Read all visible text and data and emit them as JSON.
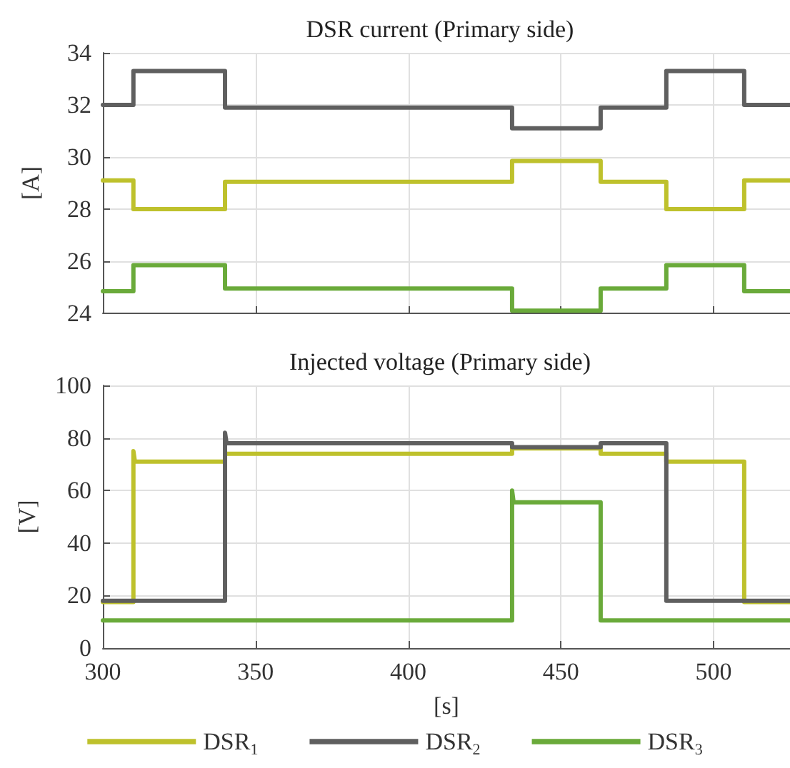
{
  "chart_data": [
    {
      "type": "line",
      "title": "DSR current (Primary side)",
      "ylabel": "[A]",
      "xlim": [
        300,
        525
      ],
      "xticks": [
        300,
        350,
        400,
        450,
        500
      ],
      "ylim": [
        24,
        34
      ],
      "yticks": [
        24,
        26,
        28,
        30,
        32,
        34
      ],
      "grid": true,
      "tick_labels": "y",
      "marker": "none",
      "line_style": "solid",
      "series": [
        {
          "color": "#bec12c",
          "x": [
            300,
            310,
            310,
            340,
            340,
            434,
            434,
            463,
            463,
            484.5,
            484.5,
            510,
            510,
            525
          ],
          "values": [
            29.1,
            29.1,
            28.0,
            28.0,
            29.05,
            29.05,
            29.85,
            29.85,
            29.05,
            29.05,
            28.0,
            28.0,
            29.1,
            29.1
          ]
        },
        {
          "color": "#5f5f5f",
          "x": [
            300,
            310,
            310,
            340,
            340,
            434,
            434,
            463,
            463,
            484.5,
            484.5,
            510,
            510,
            525
          ],
          "values": [
            32.0,
            32.0,
            33.3,
            33.3,
            31.9,
            31.9,
            31.1,
            31.1,
            31.9,
            31.9,
            33.3,
            33.3,
            32.0,
            32.0
          ]
        },
        {
          "color": "#6aaa3a",
          "x": [
            300,
            310,
            310,
            340,
            340,
            434,
            434,
            463,
            463,
            484.5,
            484.5,
            510,
            510,
            525
          ],
          "values": [
            24.85,
            24.85,
            25.85,
            25.85,
            24.95,
            24.95,
            24.1,
            24.1,
            24.95,
            24.95,
            25.85,
            25.85,
            24.85,
            24.85
          ]
        }
      ]
    },
    {
      "type": "line",
      "title": "Injected voltage (Primary side)",
      "xlabel": "[s]",
      "ylabel": "[V]",
      "xlim": [
        300,
        525
      ],
      "xticks": [
        300,
        350,
        400,
        450,
        500
      ],
      "ylim": [
        0,
        100
      ],
      "yticks": [
        0,
        20,
        40,
        60,
        80,
        100
      ],
      "grid": true,
      "legend": "bottom",
      "marker": "none",
      "line_style": "solid",
      "series": [
        {
          "name": "DSR$_{1}$",
          "color": "#bec12c",
          "x": [
            300,
            310,
            310,
            310.5,
            340,
            340,
            434,
            434,
            463,
            463,
            484.5,
            484.5,
            510,
            510,
            525
          ],
          "values": [
            17.5,
            17.5,
            75,
            71,
            71,
            74,
            74,
            76,
            76,
            74,
            74,
            71,
            71,
            17.5,
            17.5
          ]
        },
        {
          "name": "DSR$_{2}$",
          "color": "#5f5f5f",
          "x": [
            300,
            340,
            340,
            340.5,
            434,
            434,
            463,
            463,
            484.5,
            484.5,
            525
          ],
          "values": [
            18,
            18,
            82,
            78,
            78,
            76.5,
            76.5,
            78,
            78,
            18,
            18
          ]
        },
        {
          "name": "DSR$_{3}$",
          "color": "#6aaa3a",
          "x": [
            300,
            434,
            434,
            434.5,
            463,
            463,
            525
          ],
          "values": [
            10.5,
            10.5,
            60,
            55.5,
            55.5,
            10.5,
            10.5
          ]
        }
      ]
    }
  ]
}
